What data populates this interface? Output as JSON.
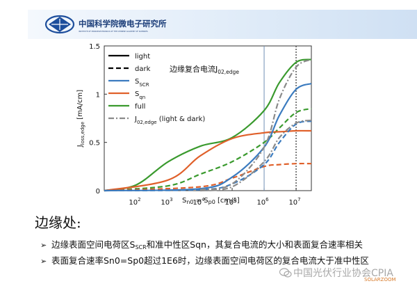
{
  "header": {
    "org_cn": "中国科学院微电子研究所",
    "org_en": "INSTITUTE OF MICROELECTRONICS OF THE CHINESE ACADEMY OF SCIENCES"
  },
  "chart_data": {
    "type": "line",
    "title": "",
    "annotation": "边缘复合电流J",
    "annotation_sub": "02,edge",
    "ylabel": "J_loss,edge [mA/cm]",
    "xlabel": "S_n0 = S_p0 [cm/s]",
    "x_scale": "log",
    "xlim": [
      10,
      30000000.0
    ],
    "ylim": [
      0,
      1.5
    ],
    "yticks": [
      "0",
      "0.5",
      "1",
      "1.5"
    ],
    "xticks": [
      {
        "base": "10",
        "exp": "2"
      },
      {
        "base": "10",
        "exp": "3"
      },
      {
        "base": "10",
        "exp": "4"
      },
      {
        "base": "10",
        "exp": "5"
      },
      {
        "base": "10",
        "exp": "6"
      },
      {
        "base": "10",
        "exp": "7"
      }
    ],
    "vlines": [
      {
        "x": 1000000,
        "style": "solid",
        "color": "#6f8fb5"
      },
      {
        "x": 10000000,
        "style": "dotted",
        "color": "#555555"
      }
    ],
    "legend_position": "top-left",
    "legend": [
      {
        "label": "light",
        "sub": "",
        "color": "#000000",
        "dash": "solid"
      },
      {
        "label": "dark",
        "sub": "",
        "color": "#000000",
        "dash": "dashed"
      },
      {
        "label": "S",
        "sub": "SCR",
        "color": "#3b7bbf",
        "dash": "solid"
      },
      {
        "label": "S",
        "sub": "qn",
        "color": "#e0602a",
        "dash": "solid"
      },
      {
        "label": "full",
        "sub": "",
        "color": "#3a9a2e",
        "dash": "solid"
      },
      {
        "label": "J",
        "sub": "02,edge",
        "suffix": " (light & dark)",
        "color": "#8a8a8a",
        "dash": "dashdot"
      }
    ],
    "series": [
      {
        "key": "full_light",
        "color": "#3a9a2e",
        "dash": "solid",
        "x": [
          10,
          100,
          1000,
          10000,
          100000,
          1000000,
          3000000,
          10000000,
          30000000
        ],
        "y": [
          0.0,
          0.06,
          0.3,
          0.46,
          0.55,
          0.83,
          1.12,
          1.33,
          1.36
        ]
      },
      {
        "key": "full_dark",
        "color": "#3a9a2e",
        "dash": "dashed",
        "x": [
          10,
          1000,
          10000,
          100000,
          1000000,
          3000000,
          10000000,
          30000000
        ],
        "y": [
          0.0,
          0.05,
          0.17,
          0.3,
          0.5,
          0.65,
          0.81,
          0.85
        ]
      },
      {
        "key": "sqn_light",
        "color": "#e0602a",
        "dash": "solid",
        "x": [
          10,
          1000,
          10000,
          100000,
          1000000,
          3000000,
          10000000,
          30000000
        ],
        "y": [
          0.0,
          0.11,
          0.36,
          0.54,
          0.6,
          0.61,
          0.62,
          0.62
        ]
      },
      {
        "key": "sqn_dark",
        "color": "#e0602a",
        "dash": "dashed",
        "x": [
          10,
          10000,
          100000,
          1000000,
          3000000,
          10000000,
          30000000
        ],
        "y": [
          0.0,
          0.04,
          0.13,
          0.25,
          0.27,
          0.28,
          0.28
        ]
      },
      {
        "key": "sscr_light",
        "color": "#3b7bbf",
        "dash": "solid",
        "x": [
          10,
          10000,
          100000,
          1000000,
          3000000,
          10000000,
          30000000
        ],
        "y": [
          0.0,
          0.02,
          0.14,
          0.45,
          0.78,
          1.05,
          1.11
        ]
      },
      {
        "key": "sscr_dark",
        "color": "#3b7bbf",
        "dash": "dashed",
        "x": [
          10,
          10000,
          100000,
          1000000,
          3000000,
          10000000,
          30000000
        ],
        "y": [
          0.0,
          0.01,
          0.07,
          0.27,
          0.5,
          0.69,
          0.72
        ]
      },
      {
        "key": "j02_light",
        "color": "#8a8a8a",
        "dash": "dashdot",
        "x": [
          10000,
          100000,
          1000000,
          3000000,
          10000000,
          30000000
        ],
        "y": [
          0.01,
          0.07,
          0.45,
          0.95,
          1.28,
          1.36
        ]
      },
      {
        "key": "j02_dark",
        "color": "#8a8a8a",
        "dash": "dashdot",
        "x": [
          10000,
          100000,
          1000000,
          3000000,
          10000000,
          30000000
        ],
        "y": [
          0.0,
          0.04,
          0.3,
          0.55,
          0.7,
          0.73
        ]
      }
    ]
  },
  "slide": {
    "heading": "边缘处:",
    "bullet1_pre": "边缘表面空间电荷区S",
    "bullet1_sub": "SCR",
    "bullet1_post": "和准中性区Sqn，其复合电流的大小和表面复合速率相关",
    "bullet2": "表面复合速率Sn0=Sp0超过1E6时，边缘表面空间电荷区的复合电流大于准中性区",
    "bullet_marker": "➢"
  },
  "watermark": {
    "text": "中国光伏行业协会CPIA",
    "small": "SOLARZOOM"
  }
}
